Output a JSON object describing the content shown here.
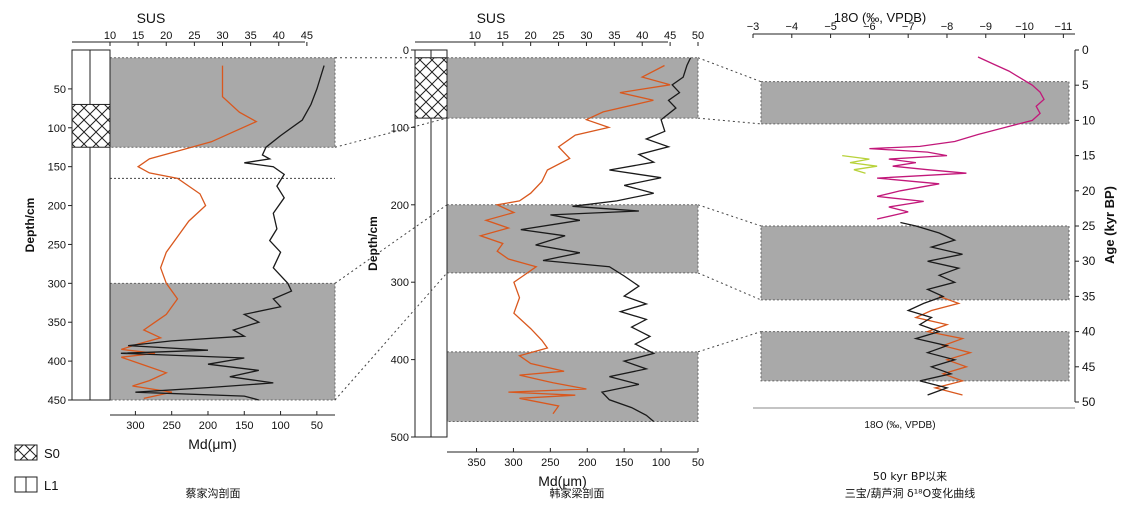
{
  "legend": {
    "s0_label": "S0",
    "l1_label": "L1"
  },
  "chart_data": [
    {
      "type": "line",
      "caption": "蔡家沟剖面",
      "ylabel": "Depth/cm",
      "ylim": [
        0,
        450
      ],
      "yticks": [
        50,
        100,
        150,
        200,
        250,
        300,
        350,
        400,
        450
      ],
      "top_axis": {
        "label": "SUS",
        "range": [
          10,
          50
        ],
        "ticks": [
          10,
          15,
          20,
          25,
          30,
          35,
          40,
          45
        ]
      },
      "bottom_axis": {
        "label": "Md(μm)",
        "range": [
          335,
          25
        ],
        "ticks": [
          300,
          250,
          200,
          150,
          100,
          50
        ]
      },
      "shaded_intervals": [
        [
          10,
          125
        ],
        [
          300,
          450
        ]
      ],
      "dashed_lines": [
        165
      ],
      "strata": [
        {
          "type": "S0",
          "top": 70,
          "bottom": 125
        },
        {
          "type": "L1",
          "top": 0,
          "bottom": 70
        },
        {
          "type": "L1",
          "top": 125,
          "bottom": 450
        }
      ],
      "series": [
        {
          "color": "#d9581e",
          "axis": "top",
          "points": [
            [
              30,
              20
            ],
            [
              30,
              60
            ],
            [
              33,
              80
            ],
            [
              36,
              92
            ],
            [
              32,
              105
            ],
            [
              28,
              118
            ],
            [
              22,
              130
            ],
            [
              17,
              140
            ],
            [
              15,
              150
            ],
            [
              17,
              158
            ],
            [
              22,
              165
            ],
            [
              26,
              185
            ],
            [
              27,
              200
            ],
            [
              24,
              220
            ],
            [
              22,
              240
            ],
            [
              20,
              260
            ],
            [
              19,
              280
            ],
            [
              20,
              300
            ],
            [
              22,
              320
            ],
            [
              20,
              340
            ],
            [
              18,
              350
            ],
            [
              16,
              360
            ],
            [
              19,
              370
            ],
            [
              15,
              378
            ],
            [
              12,
              385
            ],
            [
              18,
              390
            ],
            [
              12,
              395
            ],
            [
              16,
              405
            ],
            [
              20,
              415
            ],
            [
              17,
              425
            ],
            [
              14,
              432
            ],
            [
              21,
              440
            ],
            [
              16,
              448
            ]
          ]
        },
        {
          "color": "#1a1a1a",
          "axis": "bottom",
          "points": [
            [
              40,
              20
            ],
            [
              50,
              50
            ],
            [
              58,
              70
            ],
            [
              70,
              90
            ],
            [
              100,
              110
            ],
            [
              120,
              125
            ],
            [
              125,
              135
            ],
            [
              115,
              140
            ],
            [
              150,
              145
            ],
            [
              110,
              150
            ],
            [
              95,
              160
            ],
            [
              105,
              175
            ],
            [
              95,
              190
            ],
            [
              110,
              210
            ],
            [
              105,
              230
            ],
            [
              115,
              245
            ],
            [
              100,
              260
            ],
            [
              110,
              280
            ],
            [
              90,
              300
            ],
            [
              85,
              310
            ],
            [
              110,
              320
            ],
            [
              100,
              330
            ],
            [
              150,
              340
            ],
            [
              130,
              350
            ],
            [
              165,
              360
            ],
            [
              150,
              368
            ],
            [
              250,
              374
            ],
            [
              310,
              380
            ],
            [
              200,
              386
            ],
            [
              320,
              390
            ],
            [
              150,
              396
            ],
            [
              200,
              404
            ],
            [
              130,
              412
            ],
            [
              170,
              420
            ],
            [
              110,
              428
            ],
            [
              200,
              434
            ],
            [
              300,
              440
            ],
            [
              150,
              445
            ],
            [
              130,
              450
            ]
          ]
        }
      ]
    },
    {
      "type": "line",
      "caption": "韩家梁剖面",
      "ylabel": "Depth/cm",
      "ylim": [
        0,
        500
      ],
      "yticks": [
        0,
        100,
        200,
        300,
        400,
        500
      ],
      "top_axis": {
        "label": "SUS",
        "range": [
          5,
          50
        ],
        "ticks": [
          10,
          15,
          20,
          25,
          30,
          35,
          40,
          45,
          50
        ]
      },
      "bottom_axis": {
        "label": "Md(μm)",
        "range": [
          390,
          50
        ],
        "ticks": [
          350,
          300,
          250,
          200,
          150,
          100,
          50
        ]
      },
      "shaded_intervals": [
        [
          10,
          88
        ],
        [
          200,
          288
        ],
        [
          390,
          480
        ]
      ],
      "strata": [
        {
          "type": "S0",
          "top": 10,
          "bottom": 88
        },
        {
          "type": "L1",
          "top": 88,
          "bottom": 500
        }
      ],
      "series": [
        {
          "color": "#d9581e",
          "axis": "top",
          "points": [
            [
              44,
              20
            ],
            [
              40,
              35
            ],
            [
              45,
              45
            ],
            [
              36,
              55
            ],
            [
              42,
              65
            ],
            [
              33,
              80
            ],
            [
              30,
              90
            ],
            [
              34,
              100
            ],
            [
              28,
              110
            ],
            [
              25,
              125
            ],
            [
              27,
              140
            ],
            [
              23,
              155
            ],
            [
              22,
              170
            ],
            [
              20,
              185
            ],
            [
              18,
              195
            ],
            [
              14,
              200
            ],
            [
              17,
              210
            ],
            [
              12,
              220
            ],
            [
              16,
              230
            ],
            [
              11,
              240
            ],
            [
              15,
              250
            ],
            [
              14,
              260
            ],
            [
              16,
              270
            ],
            [
              21,
              280
            ],
            [
              19,
              290
            ],
            [
              17,
              300
            ],
            [
              18,
              320
            ],
            [
              17,
              340
            ],
            [
              20,
              360
            ],
            [
              22,
              375
            ],
            [
              23,
              385
            ],
            [
              18,
              395
            ],
            [
              20,
              405
            ],
            [
              26,
              415
            ],
            [
              18,
              420
            ],
            [
              24,
              430
            ],
            [
              30,
              438
            ],
            [
              16,
              442
            ],
            [
              28,
              446
            ],
            [
              18,
              450
            ],
            [
              25,
              460
            ],
            [
              24,
              470
            ]
          ]
        },
        {
          "color": "#1a1a1a",
          "axis": "bottom",
          "points": [
            [
              60,
              10
            ],
            [
              65,
              20
            ],
            [
              70,
              35
            ],
            [
              85,
              45
            ],
            [
              75,
              55
            ],
            [
              90,
              65
            ],
            [
              80,
              75
            ],
            [
              100,
              90
            ],
            [
              95,
              105
            ],
            [
              120,
              115
            ],
            [
              90,
              125
            ],
            [
              130,
              135
            ],
            [
              110,
              145
            ],
            [
              170,
              155
            ],
            [
              100,
              165
            ],
            [
              150,
              175
            ],
            [
              110,
              185
            ],
            [
              160,
              195
            ],
            [
              220,
              202
            ],
            [
              130,
              208
            ],
            [
              250,
              213
            ],
            [
              210,
              220
            ],
            [
              290,
              232
            ],
            [
              230,
              240
            ],
            [
              270,
              252
            ],
            [
              210,
              262
            ],
            [
              260,
              272
            ],
            [
              170,
              280
            ],
            [
              150,
              292
            ],
            [
              130,
              305
            ],
            [
              150,
              318
            ],
            [
              120,
              328
            ],
            [
              155,
              338
            ],
            [
              120,
              348
            ],
            [
              140,
              358
            ],
            [
              115,
              370
            ],
            [
              135,
              380
            ],
            [
              110,
              392
            ],
            [
              150,
              402
            ],
            [
              120,
              412
            ],
            [
              170,
              422
            ],
            [
              130,
              432
            ],
            [
              180,
              442
            ],
            [
              170,
              452
            ],
            [
              140,
              462
            ],
            [
              120,
              472
            ],
            [
              110,
              480
            ]
          ]
        }
      ]
    },
    {
      "type": "line",
      "caption": "50 kyr BP以来 三宝/葫芦洞 δ¹⁸O变化曲线",
      "top_axis": {
        "label": "18O (‰, VPDB)",
        "range": [
          -3,
          -11.3
        ],
        "ticks": [
          -3,
          -4,
          -5,
          -6,
          -7,
          -8,
          -9,
          -10,
          -11
        ]
      },
      "bottom_axis": {
        "label": "18O (‰, VPDB)"
      },
      "ylabel": "Age (kyr BP)",
      "ylim": [
        0,
        50
      ],
      "yticks": [
        0,
        5,
        10,
        15,
        20,
        25,
        30,
        35,
        40,
        45,
        50
      ],
      "shaded_intervals": [
        [
          4.5,
          10.5
        ],
        [
          25,
          35.5
        ],
        [
          40,
          47
        ]
      ],
      "series": [
        {
          "color": "#c2187a",
          "points": [
            [
              -8.8,
              1
            ],
            [
              -9.2,
              2
            ],
            [
              -9.6,
              3
            ],
            [
              -9.9,
              4
            ],
            [
              -10.2,
              5
            ],
            [
              -10.4,
              6
            ],
            [
              -10.5,
              7
            ],
            [
              -10.3,
              8
            ],
            [
              -10.4,
              9
            ],
            [
              -10.2,
              10
            ],
            [
              -9.5,
              11
            ],
            [
              -8.8,
              12
            ],
            [
              -8.2,
              13
            ],
            [
              -7.3,
              13.7
            ],
            [
              -6,
              14
            ],
            [
              -7.5,
              14.5
            ],
            [
              -8,
              15
            ],
            [
              -6.5,
              15.5
            ],
            [
              -7.2,
              16
            ],
            [
              -6.6,
              16.5
            ],
            [
              -7.5,
              17
            ],
            [
              -8.5,
              17.5
            ],
            [
              -6.2,
              18.2
            ],
            [
              -7.8,
              19
            ],
            [
              -6.8,
              20
            ],
            [
              -6.2,
              20.8
            ],
            [
              -7.4,
              21.5
            ],
            [
              -6.5,
              22.3
            ],
            [
              -7,
              23
            ],
            [
              -6.2,
              24
            ]
          ]
        },
        {
          "color": "#b8d23a",
          "points": [
            [
              -5.3,
              15
            ],
            [
              -6,
              15.5
            ],
            [
              -5.5,
              16
            ],
            [
              -6.2,
              16.5
            ],
            [
              -5.6,
              17
            ],
            [
              -5.9,
              17.5
            ]
          ]
        },
        {
          "color": "#d9581e",
          "points": [
            [
              -7.8,
              35
            ],
            [
              -8.3,
              36
            ],
            [
              -7.6,
              37
            ],
            [
              -7.2,
              38
            ],
            [
              -8,
              39
            ],
            [
              -7.5,
              40
            ],
            [
              -8.4,
              41
            ],
            [
              -7.9,
              42
            ],
            [
              -8.6,
              43
            ],
            [
              -8,
              44
            ],
            [
              -8.5,
              45
            ],
            [
              -7.9,
              46
            ],
            [
              -8.4,
              47
            ],
            [
              -7.7,
              48
            ],
            [
              -8.4,
              49
            ]
          ]
        },
        {
          "color": "#1a1a1a",
          "points": [
            [
              -6.8,
              24.5
            ],
            [
              -7.2,
              25
            ],
            [
              -7.8,
              26
            ],
            [
              -8.2,
              27
            ],
            [
              -7.6,
              28
            ],
            [
              -8.4,
              29
            ],
            [
              -7.5,
              30
            ],
            [
              -8.3,
              31
            ],
            [
              -7.8,
              32
            ],
            [
              -8.2,
              33
            ],
            [
              -7.5,
              34
            ],
            [
              -7.9,
              35
            ],
            [
              -7.4,
              36
            ],
            [
              -7,
              37
            ],
            [
              -7.6,
              38
            ],
            [
              -7.3,
              39
            ],
            [
              -7.8,
              40
            ],
            [
              -7.2,
              41
            ],
            [
              -8,
              42
            ],
            [
              -7.5,
              43
            ],
            [
              -8.2,
              44
            ],
            [
              -7.6,
              45
            ],
            [
              -8.1,
              46
            ],
            [
              -7.3,
              47
            ],
            [
              -8,
              48
            ],
            [
              -7.5,
              49
            ]
          ]
        }
      ]
    }
  ]
}
